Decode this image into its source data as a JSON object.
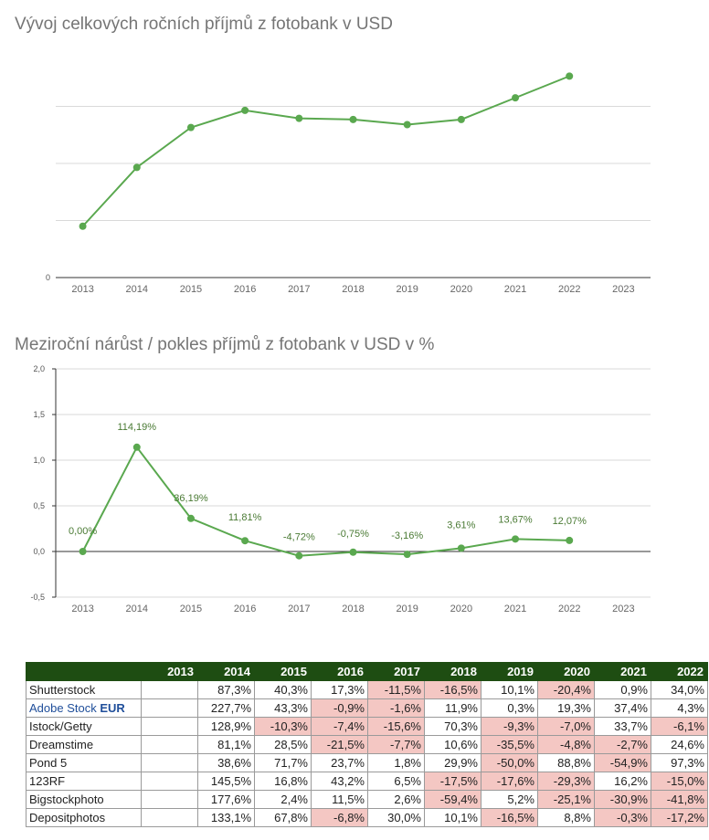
{
  "colors": {
    "line": "#5aa84f",
    "grid": "#d9d9d9",
    "header_bg": "#1e4d12",
    "negative_bg": "#f4c7c3"
  },
  "chart_data": [
    {
      "type": "line",
      "title": "Vývoj celkových ročních příjmů z fotobank v USD",
      "x": [
        "2013",
        "2014",
        "2015",
        "2016",
        "2017",
        "2018",
        "2019",
        "2020",
        "2021",
        "2022",
        "2023"
      ],
      "series": [
        {
          "values": [
            0.9,
            1.93,
            2.63,
            2.93,
            2.79,
            2.77,
            2.68,
            2.77,
            3.15,
            3.53,
            null
          ]
        }
      ],
      "y_tick_labels": [
        "0"
      ],
      "ylim": [
        0,
        4
      ],
      "grid": true
    },
    {
      "type": "line",
      "title": "Meziroční nárůst / pokles příjmů z fotobank v USD v %",
      "x": [
        "2013",
        "2014",
        "2015",
        "2016",
        "2017",
        "2018",
        "2019",
        "2020",
        "2021",
        "2022",
        "2023"
      ],
      "series": [
        {
          "values": [
            0.0,
            1.1419,
            0.3619,
            0.1181,
            -0.0472,
            -0.0075,
            -0.0316,
            0.0361,
            0.1367,
            0.1207,
            null
          ]
        }
      ],
      "data_labels": [
        "0,00%",
        "114,19%",
        "36,19%",
        "11,81%",
        "-4,72%",
        "-0,75%",
        "-3,16%",
        "3,61%",
        "13,67%",
        "12,07%"
      ],
      "y_ticks": [
        "2,0",
        "1,5",
        "1,0",
        "0,5",
        "0,0",
        "-0,5"
      ],
      "ylim": [
        -0.5,
        2.0
      ],
      "grid": true
    },
    {
      "type": "table",
      "columns": [
        "",
        "2013",
        "2014",
        "2015",
        "2016",
        "2017",
        "2018",
        "2019",
        "2020",
        "2021",
        "2022"
      ],
      "rows": [
        {
          "name": "Shutterstock",
          "values": [
            "",
            "87,3%",
            "40,3%",
            "17,3%",
            "-11,5%",
            "-16,5%",
            "10,1%",
            "-20,4%",
            "0,9%",
            "34,0%"
          ]
        },
        {
          "name": "Adobe Stock",
          "currency": "EUR",
          "values": [
            "",
            "227,7%",
            "43,3%",
            "-0,9%",
            "-1,6%",
            "11,9%",
            "0,3%",
            "19,3%",
            "37,4%",
            "4,3%"
          ]
        },
        {
          "name": "Istock/Getty",
          "values": [
            "",
            "128,9%",
            "-10,3%",
            "-7,4%",
            "-15,6%",
            "70,3%",
            "-9,3%",
            "-7,0%",
            "33,7%",
            "-6,1%"
          ]
        },
        {
          "name": "Dreamstime",
          "values": [
            "",
            "81,1%",
            "28,5%",
            "-21,5%",
            "-7,7%",
            "10,6%",
            "-35,5%",
            "-4,8%",
            "-2,7%",
            "24,6%"
          ]
        },
        {
          "name": "Pond 5",
          "values": [
            "",
            "38,6%",
            "71,7%",
            "23,7%",
            "1,8%",
            "29,9%",
            "-50,0%",
            "88,8%",
            "-54,9%",
            "97,3%"
          ]
        },
        {
          "name": "123RF",
          "values": [
            "",
            "145,5%",
            "16,8%",
            "43,2%",
            "6,5%",
            "-17,5%",
            "-17,6%",
            "-29,3%",
            "16,2%",
            "-15,0%"
          ]
        },
        {
          "name": "Bigstockphoto",
          "values": [
            "",
            "177,6%",
            "2,4%",
            "11,5%",
            "2,6%",
            "-59,4%",
            "5,2%",
            "-25,1%",
            "-30,9%",
            "-41,8%"
          ]
        },
        {
          "name": "Depositphotos",
          "values": [
            "",
            "133,1%",
            "67,8%",
            "-6,8%",
            "30,0%",
            "10,1%",
            "-16,5%",
            "8,8%",
            "-0,3%",
            "-17,2%"
          ]
        }
      ]
    }
  ]
}
